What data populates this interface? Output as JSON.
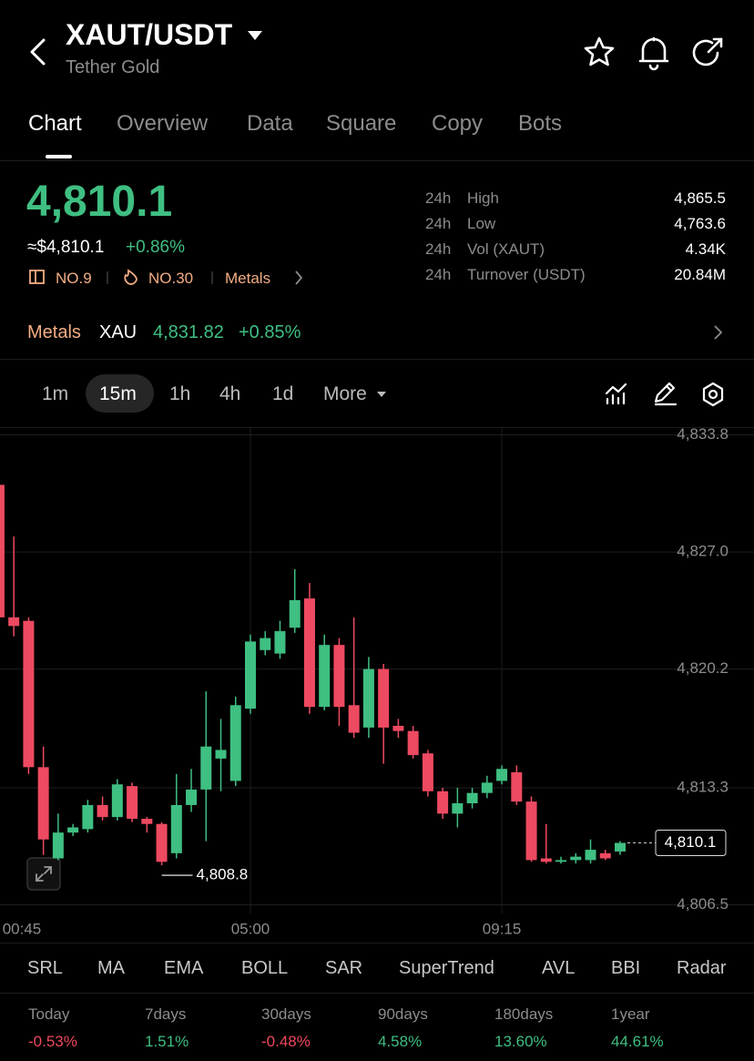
{
  "header": {
    "pair": "XAUT/USDT",
    "name": "Tether Gold"
  },
  "tabs": [
    "Chart",
    "Overview",
    "Data",
    "Square",
    "Copy",
    "Bots"
  ],
  "price": {
    "last": "4,810.1",
    "fiat": "≈$4,810.1",
    "change": "+0.86%",
    "badges": [
      "NO.9",
      "NO.30",
      "Metals"
    ]
  },
  "stats": [
    [
      "24h",
      "High",
      "4,865.5"
    ],
    [
      "24h",
      "Low",
      "4,763.6"
    ],
    [
      "24h",
      "Vol (XAUT)",
      "4.34K"
    ],
    [
      "24h",
      "Turnover (USDT)",
      "20.84M"
    ]
  ],
  "metals": {
    "label": "Metals",
    "symbol": "XAU",
    "price": "4,831.82",
    "change": "+0.85%"
  },
  "intervals": [
    "1m",
    "15m",
    "1h",
    "4h",
    "1d",
    "More"
  ],
  "chart_data": {
    "type": "candlestick",
    "categories": [
      "00:45",
      null,
      null,
      null,
      null,
      null,
      null,
      null,
      null,
      null,
      null,
      null,
      null,
      null,
      null,
      null,
      null,
      "05:00",
      null,
      null,
      null,
      null,
      null,
      null,
      null,
      null,
      null,
      null,
      null,
      null,
      null,
      null,
      null,
      null,
      "09:15",
      null,
      null,
      null,
      null,
      null,
      null,
      null,
      null
    ],
    "open": [
      4830.9,
      4823.2,
      4823.0,
      4814.5,
      4809.2,
      4810.7,
      4810.9,
      4812.3,
      4811.6,
      4813.4,
      4811.5,
      4811.2,
      4809.5,
      4812.3,
      4813.2,
      4815.0,
      4813.7,
      4817.9,
      4821.3,
      4821.1,
      4822.6,
      4824.3,
      4818.0,
      4821.6,
      4818.1,
      4816.8,
      4820.2,
      4816.9,
      4816.6,
      4815.3,
      4813.1,
      4811.8,
      4812.4,
      4813.0,
      4813.7,
      4814.2,
      4812.5,
      4809.2,
      4809.0,
      4809.1,
      4809.1,
      4809.5,
      4809.6
    ],
    "high": [
      4831.0,
      4827.9,
      4823.2,
      4815.7,
      4811.8,
      4811.2,
      4812.6,
      4812.8,
      4813.8,
      4813.6,
      4811.6,
      4811.3,
      4814.1,
      4814.4,
      4818.9,
      4817.3,
      4818.6,
      4822.2,
      4822.4,
      4823.0,
      4826.0,
      4825.2,
      4822.2,
      4822.0,
      4823.2,
      4820.9,
      4820.5,
      4817.3,
      4816.9,
      4815.5,
      4813.3,
      4813.3,
      4813.3,
      4814.0,
      4814.6,
      4814.6,
      4812.8,
      4811.2,
      4809.3,
      4809.5,
      4810.3,
      4809.7,
      4810.2
    ],
    "low": [
      4822.9,
      4822.1,
      4814.1,
      4809.4,
      4809.1,
      4810.5,
      4810.7,
      4811.4,
      4811.4,
      4811.3,
      4810.7,
      4808.8,
      4809.2,
      4811.9,
      4810.2,
      4813.1,
      4813.4,
      4817.6,
      4821.0,
      4820.8,
      4822.3,
      4817.6,
      4817.8,
      4816.9,
      4816.2,
      4816.2,
      4814.7,
      4816.2,
      4815.0,
      4812.8,
      4811.5,
      4811.0,
      4812.1,
      4812.7,
      4813.5,
      4812.3,
      4809.0,
      4808.9,
      4808.9,
      4808.9,
      4808.9,
      4809.1,
      4809.4
    ],
    "close": [
      4823.2,
      4822.7,
      4814.5,
      4810.3,
      4810.7,
      4811.0,
      4812.3,
      4811.6,
      4813.5,
      4811.5,
      4811.2,
      4809.0,
      4812.3,
      4813.2,
      4815.7,
      4815.5,
      4818.1,
      4821.8,
      4822.0,
      4822.4,
      4824.2,
      4818.0,
      4821.6,
      4818.0,
      4816.5,
      4820.2,
      4816.8,
      4816.6,
      4815.2,
      4813.1,
      4811.8,
      4812.4,
      4813.0,
      4813.6,
      4814.4,
      4812.5,
      4809.1,
      4809.0,
      4809.1,
      4809.3,
      4809.7,
      4809.2,
      4810.1
    ],
    "up_color": "#3fbf82",
    "down_color": "#ee4a61",
    "ylim": [
      4806.0,
      4834.2
    ],
    "yticks": [
      {
        "value": 4833.8,
        "label": "4,833.8"
      },
      {
        "value": 4827.0,
        "label": "4,827.0"
      },
      {
        "value": 4820.2,
        "label": "4,820.2"
      },
      {
        "value": 4813.3,
        "label": "4,813.3"
      },
      {
        "value": 4806.5,
        "label": "4,806.5"
      }
    ],
    "grid": true,
    "low_marker": {
      "value": 4808.8,
      "label": "4,808.8"
    },
    "last_price": {
      "value": 4810.1,
      "label": "4,810.1"
    }
  },
  "indicators": [
    "SRL",
    "MA",
    "EMA",
    "BOLL",
    "SAR",
    "SuperTrend",
    "AVL",
    "BBI",
    "Radar"
  ],
  "returns": [
    {
      "label": "Today",
      "value": "-0.53%"
    },
    {
      "label": "7days",
      "value": "1.51%"
    },
    {
      "label": "30days",
      "value": "-0.48%"
    },
    {
      "label": "90days",
      "value": "4.58%"
    },
    {
      "label": "180days",
      "value": "13.60%"
    },
    {
      "label": "1year",
      "value": "44.61%"
    }
  ]
}
